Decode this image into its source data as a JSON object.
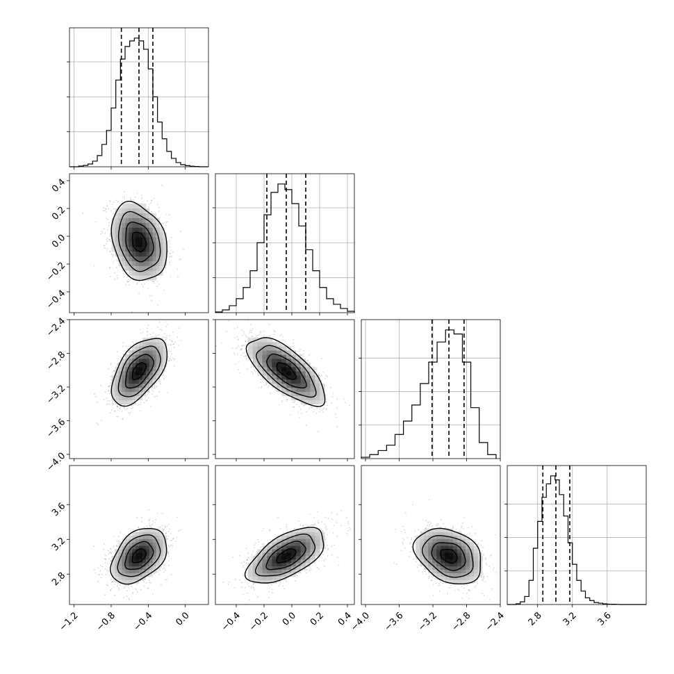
{
  "chart_data": {
    "type": "corner",
    "grid": true,
    "params": [
      {
        "id": "p0",
        "range": [
          -1.25,
          0.25
        ],
        "ticks": [
          -1.2,
          -0.8,
          -0.4,
          0.0
        ],
        "tick_labels": [
          "−1.2",
          "−0.8",
          "−0.4",
          "0.0"
        ],
        "quantiles": [
          -0.69,
          -0.5,
          -0.35
        ],
        "hist": {
          "edges": [
            -1.25,
            -1.2,
            -1.15,
            -1.1,
            -1.05,
            -1.0,
            -0.95,
            -0.9,
            -0.85,
            -0.8,
            -0.75,
            -0.7,
            -0.65,
            -0.6,
            -0.55,
            -0.5,
            -0.45,
            -0.4,
            -0.35,
            -0.3,
            -0.25,
            -0.2,
            -0.15,
            -0.1,
            -0.05,
            0.0,
            0.05,
            0.1,
            0.15,
            0.2,
            0.25
          ],
          "counts": [
            0,
            0,
            5,
            10,
            20,
            40,
            80,
            160,
            260,
            420,
            620,
            770,
            860,
            900,
            920,
            900,
            840,
            700,
            500,
            320,
            200,
            110,
            60,
            30,
            15,
            8,
            4,
            2,
            0,
            0
          ]
        },
        "hist_yticks": [
          250,
          500,
          750
        ]
      },
      {
        "id": "p1",
        "range": [
          -0.55,
          0.45
        ],
        "ticks": [
          -0.4,
          -0.2,
          0.0,
          0.2,
          0.4
        ],
        "tick_labels": [
          "−0.4",
          "−0.2",
          "0.0",
          "0.2",
          "0.4"
        ],
        "quantiles": [
          -0.18,
          -0.04,
          0.1
        ],
        "hist": {
          "edges": [
            -0.55,
            -0.5,
            -0.45,
            -0.4,
            -0.35,
            -0.3,
            -0.25,
            -0.2,
            -0.15,
            -0.1,
            -0.05,
            0.0,
            0.05,
            0.1,
            0.15,
            0.2,
            0.25,
            0.3,
            0.35,
            0.4,
            0.45
          ],
          "counts": [
            5,
            20,
            50,
            100,
            180,
            300,
            500,
            700,
            860,
            920,
            880,
            780,
            620,
            450,
            300,
            180,
            100,
            60,
            30,
            10
          ]
        },
        "hist_yticks": [
          250,
          500,
          750
        ]
      },
      {
        "id": "p2",
        "range": [
          -4.05,
          -2.4
        ],
        "ticks": [
          -4.0,
          -3.6,
          -3.2,
          -2.8,
          -2.4
        ],
        "tick_labels": [
          "−4.0",
          "−3.6",
          "−3.2",
          "−2.8",
          "−2.4"
        ],
        "quantiles": [
          -3.21,
          -3.01,
          -2.83
        ],
        "hist": {
          "edges": [
            -4.05,
            -3.95,
            -3.85,
            -3.75,
            -3.65,
            -3.55,
            -3.45,
            -3.35,
            -3.25,
            -3.15,
            -3.05,
            -2.95,
            -2.85,
            -2.75,
            -2.65,
            -2.55,
            -2.45
          ],
          "counts": [
            10,
            30,
            60,
            100,
            180,
            280,
            400,
            560,
            720,
            870,
            960,
            930,
            720,
            380,
            120,
            30
          ]
        },
        "hist_yticks": [
          250,
          500,
          750
        ]
      },
      {
        "id": "p3",
        "range": [
          2.45,
          4.05
        ],
        "ticks": [
          2.8,
          3.2,
          3.6
        ],
        "tick_labels": [
          "2.8",
          "3.2",
          "3.6"
        ],
        "quantiles": [
          2.86,
          3.01,
          3.17
        ],
        "hist": {
          "edges": [
            2.45,
            2.5,
            2.55,
            2.6,
            2.65,
            2.7,
            2.75,
            2.8,
            2.85,
            2.9,
            2.95,
            3.0,
            3.05,
            3.1,
            3.15,
            3.2,
            3.25,
            3.3,
            3.35,
            3.4,
            3.45,
            3.5,
            3.55,
            3.6,
            3.65,
            3.7,
            3.75,
            3.8,
            3.85,
            3.9,
            3.95,
            4.0,
            4.05
          ],
          "counts": [
            0,
            0,
            5,
            20,
            60,
            180,
            420,
            620,
            800,
            900,
            960,
            930,
            820,
            660,
            460,
            300,
            180,
            100,
            50,
            30,
            15,
            10,
            5,
            3,
            2,
            1,
            0,
            0,
            0,
            0,
            0,
            0
          ]
        },
        "hist_yticks": [
          250,
          500,
          750
        ]
      }
    ],
    "pairs": [
      {
        "i": 0,
        "j": 1,
        "mean": [
          -0.5,
          -0.04
        ],
        "sd": [
          0.15,
          0.14
        ],
        "rho": -0.25
      },
      {
        "i": 0,
        "j": 2,
        "mean": [
          -0.5,
          -3.01
        ],
        "sd": [
          0.15,
          0.2
        ],
        "rho": 0.55
      },
      {
        "i": 1,
        "j": 2,
        "mean": [
          -0.04,
          -3.01
        ],
        "sd": [
          0.14,
          0.2
        ],
        "rho": -0.7
      },
      {
        "i": 0,
        "j": 3,
        "mean": [
          -0.5,
          3.01
        ],
        "sd": [
          0.15,
          0.16
        ],
        "rho": 0.4
      },
      {
        "i": 1,
        "j": 3,
        "mean": [
          -0.04,
          3.01
        ],
        "sd": [
          0.14,
          0.16
        ],
        "rho": 0.6
      },
      {
        "i": 2,
        "j": 3,
        "mean": [
          -3.01,
          3.01
        ],
        "sd": [
          0.2,
          0.16
        ],
        "rho": -0.3
      }
    ],
    "contour_levels_sigma": [
      0.5,
      1.0,
      1.5,
      2.0
    ]
  }
}
